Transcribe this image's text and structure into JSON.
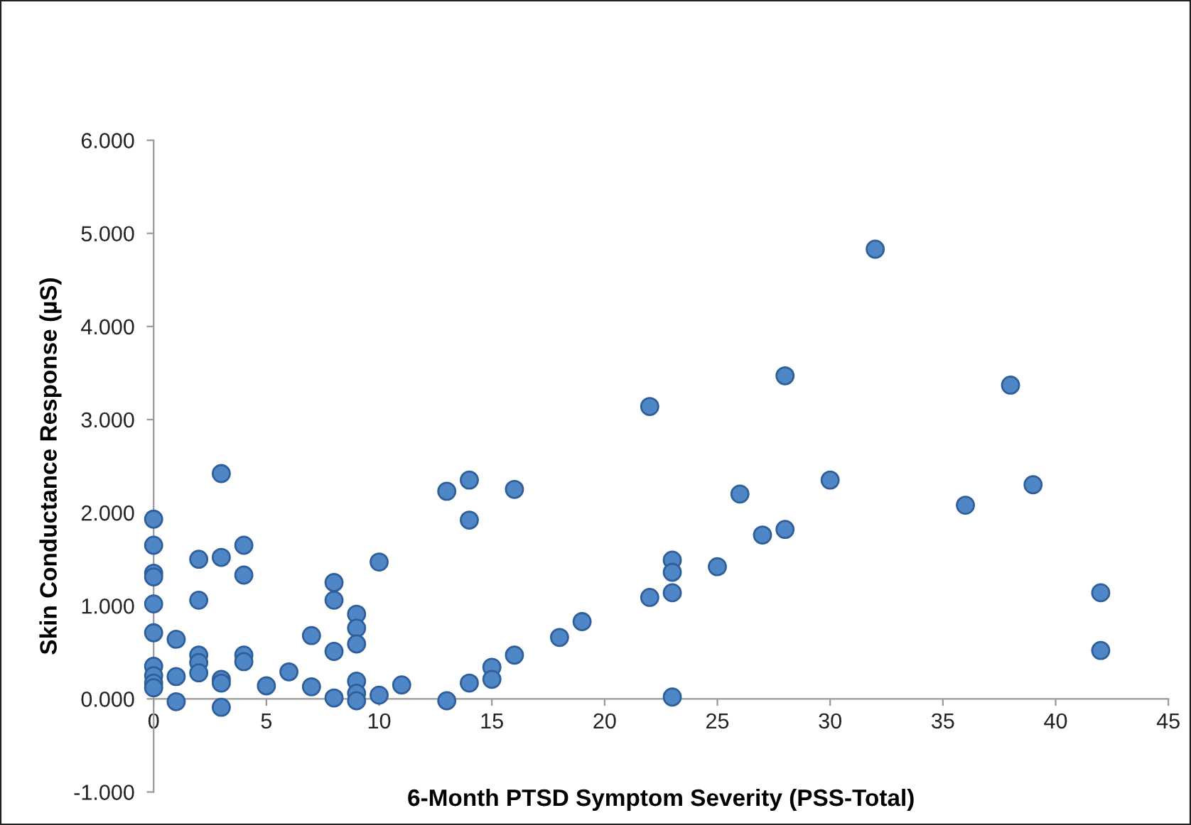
{
  "chart_data": {
    "type": "scatter",
    "xlabel": "6-Month PTSD Symptom Severity (PSS-Total)",
    "ylabel": "Skin Conductance Response (µS)",
    "x": [
      0,
      0,
      0,
      0,
      0,
      0,
      0,
      0,
      0,
      0,
      1,
      1,
      1,
      2,
      2,
      2,
      2,
      2,
      3,
      3,
      3,
      3,
      3,
      4,
      4,
      4,
      4,
      5,
      6,
      7,
      7,
      8,
      8,
      8,
      8,
      9,
      9,
      9,
      9,
      9,
      9,
      10,
      10,
      11,
      13,
      13,
      14,
      14,
      14,
      15,
      15,
      16,
      16,
      18,
      19,
      22,
      22,
      23,
      23,
      23,
      23,
      25,
      26,
      27,
      28,
      28,
      30,
      32,
      36,
      38,
      39,
      42,
      42
    ],
    "series": [
      {
        "color": "#4f86c6",
        "values": [
          1.93,
          1.65,
          1.35,
          1.31,
          1.02,
          0.71,
          0.35,
          0.25,
          0.17,
          0.12,
          0.64,
          0.24,
          -0.03,
          1.5,
          1.06,
          0.47,
          0.39,
          0.28,
          2.42,
          1.52,
          0.21,
          0.17,
          -0.09,
          1.65,
          1.33,
          0.47,
          0.4,
          0.14,
          0.29,
          0.68,
          0.13,
          1.25,
          1.06,
          0.51,
          0.01,
          0.91,
          0.76,
          0.59,
          0.19,
          0.06,
          -0.02,
          1.47,
          0.04,
          0.15,
          2.23,
          -0.02,
          2.35,
          1.92,
          0.17,
          0.34,
          0.21,
          2.25,
          0.47,
          0.66,
          0.83,
          3.14,
          1.09,
          1.49,
          1.36,
          1.14,
          0.02,
          1.42,
          2.2,
          1.76,
          3.47,
          1.82,
          2.35,
          4.83,
          2.08,
          3.37,
          2.3,
          1.14,
          0.52
        ]
      }
    ],
    "xlim": [
      0,
      45
    ],
    "xticks": [
      0,
      5,
      10,
      15,
      20,
      25,
      30,
      35,
      40,
      45
    ],
    "ylim": [
      -1,
      6
    ],
    "yticks": [
      {
        "value": -1,
        "label": "-1.000"
      },
      {
        "value": 0,
        "label": "0.000"
      },
      {
        "value": 1,
        "label": "1.000"
      },
      {
        "value": 2,
        "label": "2.000"
      },
      {
        "value": 3,
        "label": "3.000"
      },
      {
        "value": 4,
        "label": "4.000"
      },
      {
        "value": 5,
        "label": "5.000"
      },
      {
        "value": 6,
        "label": "6.000"
      }
    ],
    "grid": false,
    "marker": "circle"
  }
}
